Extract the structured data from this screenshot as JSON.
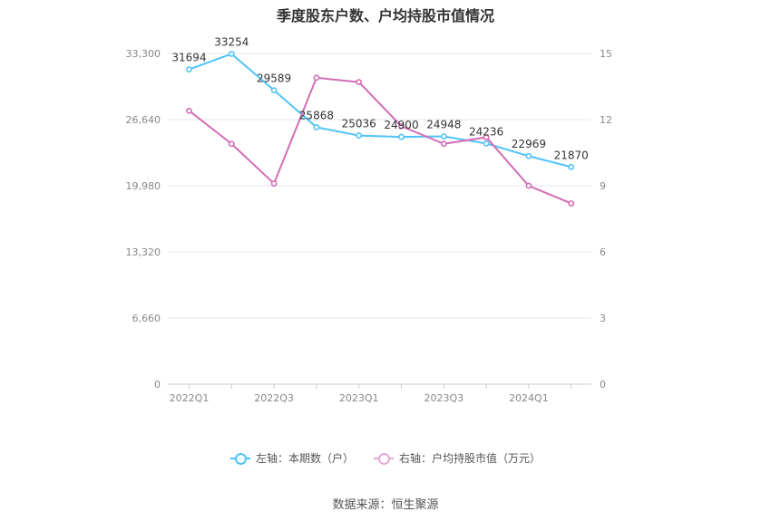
{
  "title": "季度股东户数、户均持股市值情况",
  "source": "数据来源：恒生聚源",
  "legend": {
    "left_label": "左轴：本期数（户）",
    "right_label": "右轴：户均持股市值（万元）"
  },
  "colors": {
    "left_series": "#4fc3f7",
    "right_series": "#d36cb5",
    "grid": "#e6e6f0",
    "axis_text": "#888888"
  },
  "chart_data": {
    "type": "line",
    "title": "季度股东户数、户均持股市值情况",
    "categories": [
      "2022Q1",
      "2022Q2",
      "2022Q3",
      "2022Q4",
      "2023Q1",
      "2023Q2",
      "2023Q3",
      "2023Q4",
      "2024Q1",
      "2024Q2"
    ],
    "x_tick_labels": [
      "2022Q1",
      "",
      "2022Q3",
      "",
      "2023Q1",
      "",
      "2023Q3",
      "",
      "2024Q1",
      ""
    ],
    "left_axis": {
      "ticks": [
        "0",
        "6,660",
        "13,320",
        "19,980",
        "26,640",
        "33,300"
      ],
      "ylim": [
        0,
        33300
      ]
    },
    "right_axis": {
      "ticks": [
        "0",
        "3",
        "6",
        "9",
        "12",
        "15"
      ],
      "ylim": [
        0,
        15
      ]
    },
    "series": [
      {
        "name": "左轴：本期数（户）",
        "axis": "left",
        "values": [
          31694,
          33254,
          29589,
          25868,
          25036,
          24900,
          24948,
          24236,
          22969,
          21870
        ],
        "labels": [
          "31694",
          "33254",
          "29589",
          "25868",
          "25036",
          "24900",
          "24948",
          "24236",
          "22969",
          "21870"
        ]
      },
      {
        "name": "右轴：户均持股市值（万元）",
        "axis": "right",
        "values": [
          12.4,
          10.9,
          9.1,
          13.9,
          13.7,
          11.7,
          10.9,
          11.2,
          9.0,
          8.2
        ]
      }
    ],
    "grid": true,
    "legend_position": "bottom"
  }
}
